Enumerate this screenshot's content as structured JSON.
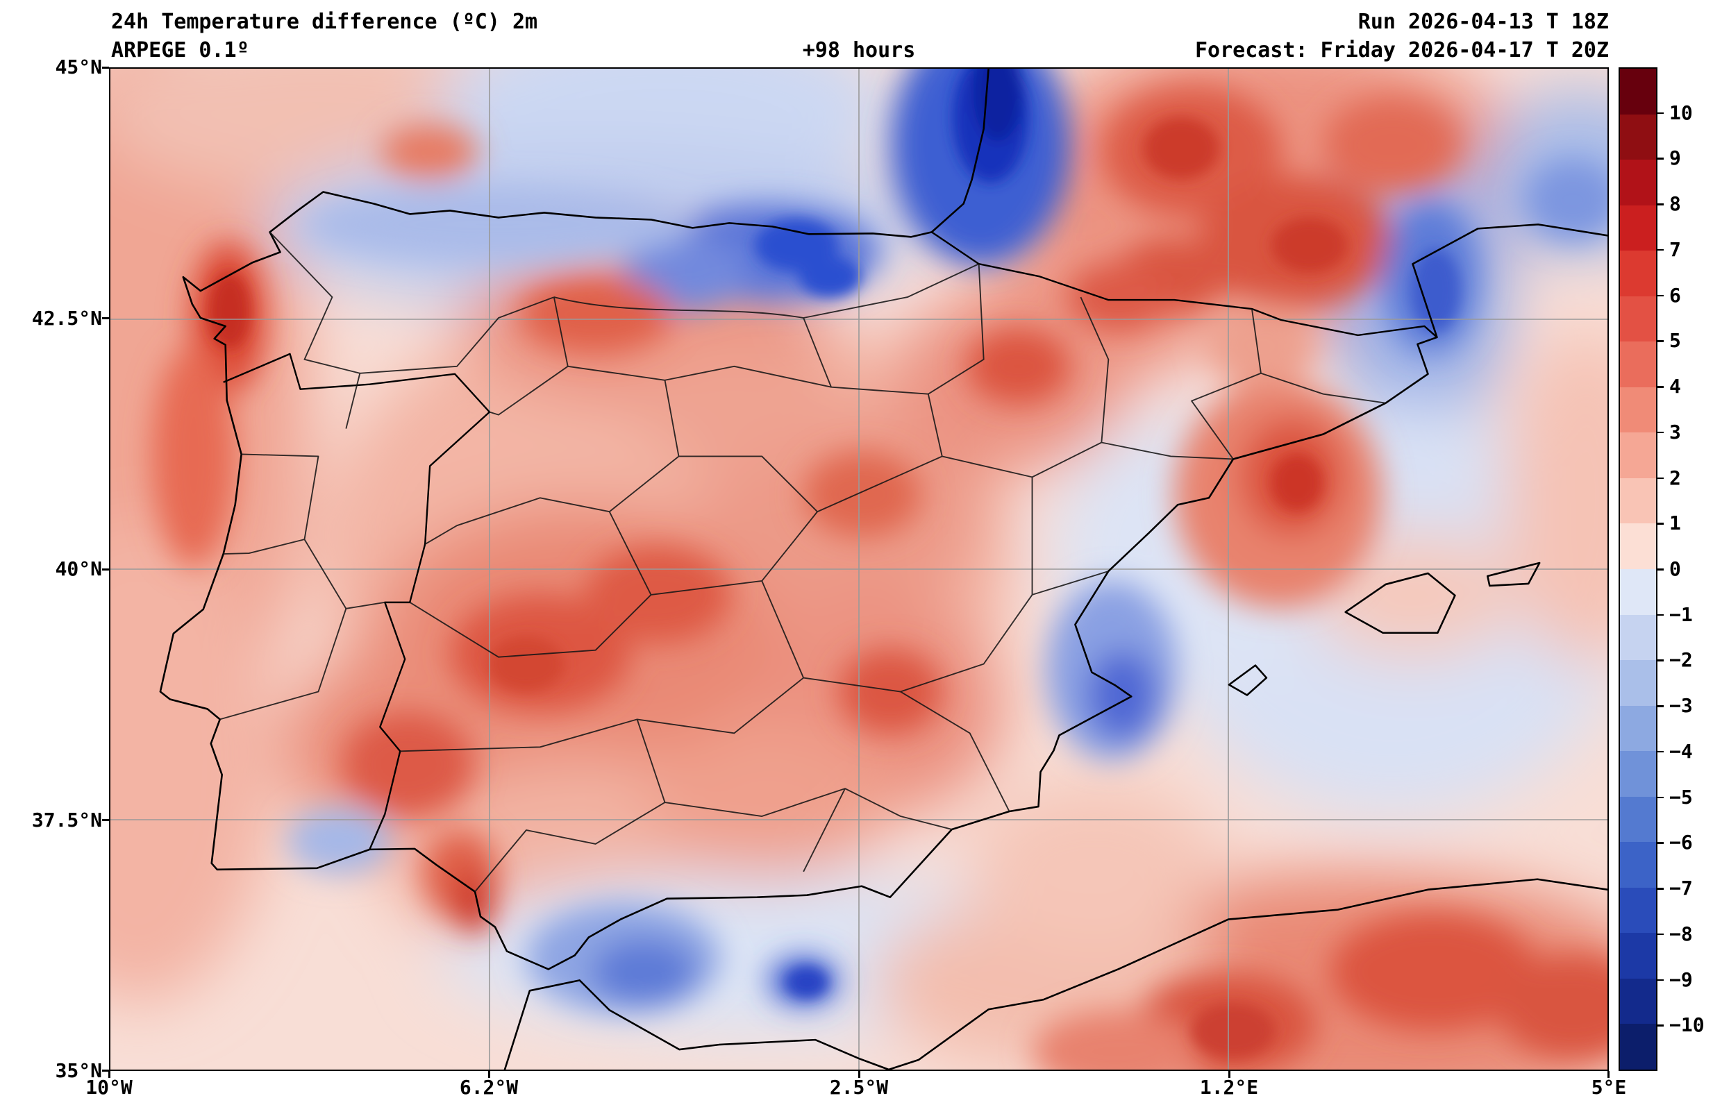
{
  "header": {
    "title": "24h Temperature difference (ºC) 2m",
    "model": "ARPEGE 0.1º",
    "lead_time": "+98 hours",
    "run": "Run 2026-04-13 T 18Z",
    "forecast": "Forecast: Friday 2026-04-17 T 20Z"
  },
  "axes": {
    "lat_ticks": [
      "45°N",
      "42.5°N",
      "40°N",
      "37.5°N",
      "35°N"
    ],
    "lon_ticks": [
      "10°W",
      "6.2°W",
      "2.5°W",
      "1.2°E",
      "5°E"
    ]
  },
  "colorbar": {
    "units": "ºC",
    "tick_labels": [
      "10",
      "9",
      "8",
      "7",
      "6",
      "5",
      "4",
      "3",
      "2",
      "1",
      "0",
      "−1",
      "−2",
      "−3",
      "−4",
      "−5",
      "−6",
      "−7",
      "−8",
      "−9",
      "−10"
    ],
    "segment_colors_top_to_bottom": [
      "#67000d",
      "#8f0e12",
      "#b11218",
      "#cb1f1f",
      "#dc3a30",
      "#e35144",
      "#ea6d5c",
      "#f08b77",
      "#f5a795",
      "#f9c4b5",
      "#fcdfd5",
      "#dfe7f7",
      "#c6d3f0",
      "#aabfe9",
      "#8da9e1",
      "#7092d9",
      "#547ad0",
      "#3c63c7",
      "#2a4cba",
      "#1c39a6",
      "#132a8c",
      "#0c1e6b"
    ]
  },
  "map_data": {
    "type": "filled-contour temperature difference map",
    "region": "Iberian Peninsula and surroundings, 10°W to 5°E, 35°N to 45°N",
    "units": "ºC (24h change of 2m temperature)",
    "notable_features": [
      {
        "area": "Bay of Biscay / Basque coast",
        "value": "-5 to -8 (strong cooling maximum)"
      },
      {
        "area": "Cantabrian north coast strip",
        "value": "-2 to -5"
      },
      {
        "area": "Most of interior Iberia",
        "value": "+1 to +3 warming"
      },
      {
        "area": "Western Atlantic margin / Galicia coast",
        "value": "+2 to +4"
      },
      {
        "area": "Southern France (northeast corner)",
        "value": "+2 to +5"
      },
      {
        "area": "Catalan coast / Gulf of Lion",
        "value": "-1 to -4"
      },
      {
        "area": "Valencia coastal spot",
        "value": "-2 to -4"
      },
      {
        "area": "Alboran Sea along south coast",
        "value": "-1 to -5"
      },
      {
        "area": "North Africa interior (bottom right)",
        "value": "+2 to +5"
      },
      {
        "area": "Eastern Mediterranean / Balearics",
        "value": "-1 to +1"
      }
    ]
  }
}
